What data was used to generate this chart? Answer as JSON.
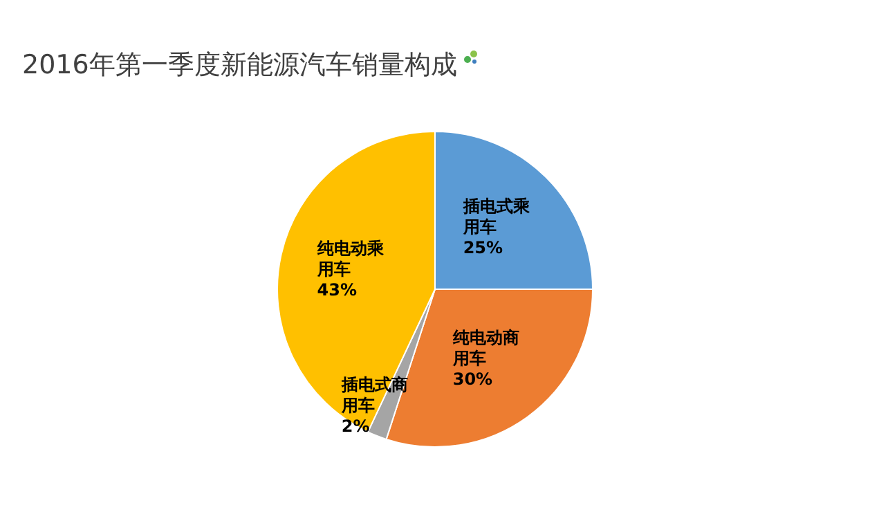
{
  "chart_data": {
    "type": "pie",
    "title": "2016年第一季度新能源汽车销量构成",
    "categories": [
      "插电式乘用车",
      "纯电动商用车",
      "插电式商用车",
      "纯电动乘用车"
    ],
    "values": [
      25,
      30,
      2,
      43
    ],
    "colors": [
      "#5b9bd5",
      "#ed7d31",
      "#a5a5a5",
      "#ffc000"
    ],
    "value_labels": [
      "25%",
      "30%",
      "2%",
      "43%"
    ],
    "legend": false
  }
}
